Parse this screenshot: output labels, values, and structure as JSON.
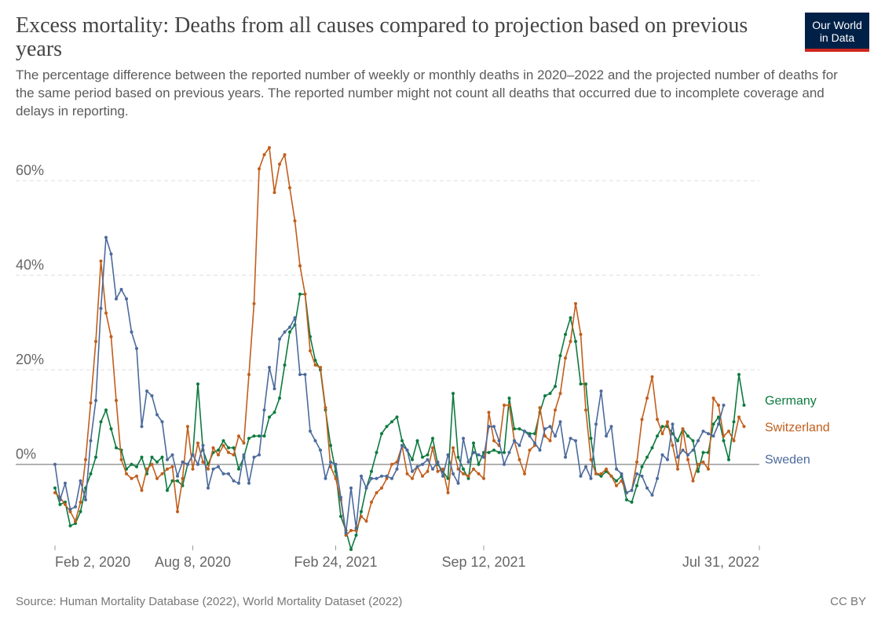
{
  "header": {
    "title": "Excess mortality: Deaths from all causes compared to projection based on previous years",
    "subtitle": "The percentage difference between the reported number of weekly or monthly deaths in 2020–2022 and the projected number of deaths for the same period based on previous years. The reported number might not count all deaths that occurred due to incomplete coverage and delays in reporting."
  },
  "logo": {
    "line1": "Our World",
    "line2": "in Data"
  },
  "footer": {
    "source": "Source: Human Mortality Database (2022), World Mortality Dataset (2022)",
    "license": "CC BY"
  },
  "chart_data": {
    "type": "line",
    "title": "Excess mortality: Deaths from all causes compared to projection based on previous years",
    "xlabel": "",
    "ylabel": "",
    "ylim": [
      -18,
      70
    ],
    "y_ticks": [
      0,
      20,
      40,
      60
    ],
    "y_tick_labels": [
      "0%",
      "20%",
      "40%",
      "60%"
    ],
    "x_range_weeks": [
      0,
      138
    ],
    "x_ticks": [
      {
        "week": 0,
        "label": "Feb 2, 2020"
      },
      {
        "week": 27,
        "label": "Aug 8, 2020"
      },
      {
        "week": 55,
        "label": "Feb 24, 2021"
      },
      {
        "week": 84,
        "label": "Sep 12, 2021"
      },
      {
        "week": 138,
        "label": "Jul 31, 2022"
      }
    ],
    "grid": true,
    "legend": "right-end labels",
    "series": [
      {
        "name": "Germany",
        "color": "#0d7a3f",
        "values": [
          -5,
          -8.5,
          -8,
          -13,
          -12.5,
          -10,
          -5,
          -2,
          1.5,
          9,
          11.5,
          7.5,
          3.5,
          3,
          -1,
          0,
          -0.5,
          1.5,
          -2,
          1.5,
          0.5,
          1.5,
          -5.5,
          -3.5,
          -3.5,
          -4.5,
          0,
          2,
          17,
          3,
          0,
          2.5,
          3,
          5,
          3.5,
          3.5,
          -1,
          1.5,
          5.5,
          6,
          6,
          6,
          10,
          11,
          14,
          21,
          28,
          29.5,
          36,
          36,
          27,
          22,
          20,
          11.5,
          4,
          -1.5,
          -11,
          -14,
          -18,
          -15,
          -10,
          -5,
          -1.5,
          2.5,
          6.5,
          8,
          9,
          10,
          5,
          3,
          1,
          5,
          1.5,
          2,
          5.5,
          0,
          -1.5,
          -3,
          15,
          1.5,
          -1,
          -3,
          4.5,
          0,
          2.5,
          2.5,
          3,
          2.5,
          2.5,
          14,
          7.5,
          7.5,
          7,
          6.5,
          6.5,
          11,
          14.5,
          15,
          16.5,
          23,
          27.5,
          31,
          26,
          17,
          17,
          5.5,
          -2,
          -2.5,
          -1.5,
          -2.5,
          -3.5,
          -2.5,
          -7.5,
          -8,
          -4.5,
          -0.5,
          1.5,
          3.5,
          6,
          8,
          8,
          6.5,
          5,
          7.5,
          6,
          5,
          -1.5,
          2.5,
          2.5,
          8.5,
          10,
          5,
          1,
          9,
          19,
          12.5
        ],
        "label_y": 12.5
      },
      {
        "name": "Switzerland",
        "color": "#c15e1c",
        "values": [
          -6,
          -7,
          -8.5,
          -10,
          -12,
          -8,
          1,
          13,
          26,
          43,
          32,
          27,
          13.5,
          1,
          -2,
          -3,
          -2.5,
          -5.5,
          -1,
          0,
          -3,
          -2,
          -1,
          -0.5,
          -10,
          -3,
          8,
          -1,
          4.5,
          0.5,
          -1,
          3.5,
          2,
          4,
          2.5,
          2,
          6,
          4.5,
          19,
          34,
          62.5,
          65.5,
          67,
          57.5,
          63.5,
          65.5,
          58.5,
          51.5,
          42,
          36,
          24,
          21,
          20.5,
          12,
          -0.5,
          -3,
          -7.5,
          -15,
          -14,
          -14,
          -11,
          -12,
          -8,
          -6,
          -5,
          -3,
          0,
          0.5,
          4,
          -2,
          -3,
          -0.5,
          -2.5,
          -1.5,
          3.5,
          -1.5,
          -1,
          -6,
          3.5,
          -1,
          -2,
          -2.5,
          -1,
          -2,
          -3,
          11,
          5,
          4,
          12.5,
          12.5,
          5,
          1,
          -2,
          3,
          4,
          12,
          6,
          5,
          11.5,
          15,
          22.5,
          26,
          34,
          27.5,
          11.5,
          1,
          -2,
          -2,
          -1,
          -2.5,
          -4.5,
          -3.5,
          -6,
          -5.5,
          0.5,
          9.5,
          14,
          18.5,
          9.5,
          6.5,
          9,
          4,
          -1,
          7.5,
          1,
          -3.5,
          0,
          0.5,
          -1,
          14,
          12.5,
          6,
          7,
          5,
          10,
          8
        ],
        "label_y": 8
      },
      {
        "name": "Sweden",
        "color": "#4c6a9c",
        "values": [
          0,
          -7.5,
          -4,
          -9.5,
          -9,
          -3.5,
          -7.5,
          5,
          13.5,
          33,
          48,
          44.5,
          35,
          37,
          35,
          28,
          24.5,
          8,
          15.5,
          14.5,
          10.5,
          9,
          1,
          2,
          -2.5,
          0.5,
          0,
          2,
          0,
          4,
          -5,
          -1,
          -0.5,
          -2,
          -2,
          -3.5,
          -4,
          2,
          -4,
          1.5,
          2,
          11.5,
          20.5,
          16,
          26.5,
          28,
          29,
          31,
          19,
          19,
          7,
          5,
          3,
          -3,
          0.5,
          0,
          -7,
          -14.5,
          -5,
          -13.5,
          -2.5,
          -5,
          -3,
          -3,
          -2.5,
          -2.5,
          -3,
          -1,
          4,
          3,
          -1.5,
          -0.5,
          0,
          1,
          -1,
          0.5,
          -2.5,
          2,
          -2,
          -4,
          5.5,
          0.5,
          2.5,
          2,
          1.5,
          8,
          8,
          5,
          0,
          2.5,
          5,
          4,
          7,
          6,
          4.5,
          3,
          7.5,
          8,
          6,
          9,
          1.5,
          5.5,
          5,
          -2.5,
          -0.5,
          -3,
          8.5,
          15.5,
          6,
          8,
          -1,
          -2,
          -6,
          -5.5,
          -2,
          -2.5,
          -5,
          -6.5,
          -3,
          2,
          1,
          8.5,
          1.5,
          3,
          2,
          3,
          5,
          7,
          6.5,
          6,
          8.5,
          12.5
        ],
        "label_y": 2
      }
    ]
  }
}
